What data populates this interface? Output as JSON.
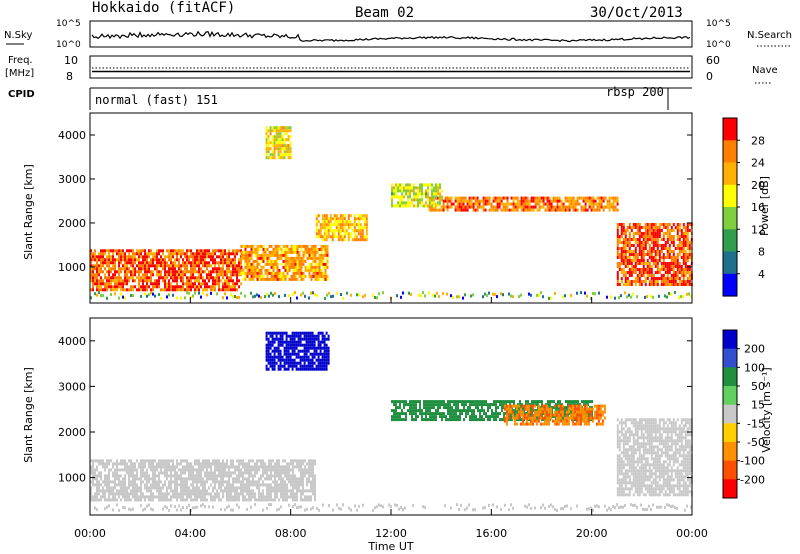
{
  "header": {
    "station": "Hokkaido (fitACF)",
    "beam": "Beam 02",
    "date": "30/Oct/2013"
  },
  "noise_panel": {
    "left_label": "N.Sky",
    "right_label": "N.Search",
    "left_ticks": [
      "10^5",
      "10^0"
    ],
    "right_ticks": [
      "10^5",
      "10^0"
    ]
  },
  "freq_panel": {
    "left_label_1": "Freq.",
    "left_label_2": "[MHz]",
    "left_ticks": [
      "10",
      "8"
    ],
    "right_label": "Nave",
    "right_ticks": [
      "60",
      "0"
    ]
  },
  "cpid_panel": {
    "label": "CPID",
    "program_1": "normal (fast) 151",
    "program_2": "rbsp 200"
  },
  "power_panel": {
    "ylabel": "Slant Range [km]",
    "yticks": [
      "4000",
      "3000",
      "2000",
      "1000"
    ],
    "colorbar_label": "Power [dB]",
    "colorbar_ticks": [
      "28",
      "24",
      "20",
      "16",
      "12",
      "8",
      "4"
    ],
    "colorbar_colors": [
      "#ff0000",
      "#ff7f00",
      "#ffb000",
      "#ffff00",
      "#7fcf3f",
      "#2f9f4f",
      "#1f6f8f",
      "#0000ff"
    ]
  },
  "velocity_panel": {
    "ylabel": "Slant Range [km]",
    "yticks": [
      "4000",
      "3000",
      "2000",
      "1000"
    ],
    "colorbar_label": "Velocity [m s⁻¹]",
    "colorbar_ticks": [
      "200",
      "100",
      "50",
      "15",
      "-15",
      "-50",
      "-100",
      "-200"
    ],
    "colorbar_colors": [
      "#0000cc",
      "#3050d0",
      "#208f40",
      "#60d060",
      "#c8c8c8",
      "#ffd000",
      "#ff9000",
      "#ff5000",
      "#ff0000"
    ]
  },
  "xaxis": {
    "label": "Time UT",
    "ticks": [
      "00:00",
      "04:00",
      "08:00",
      "12:00",
      "16:00",
      "20:00",
      "00:00"
    ]
  },
  "chart_data": {
    "type": "heatmap",
    "title": "Hokkaido (fitACF) Beam 02 30/Oct/2013",
    "xlabel": "Time UT",
    "ylabel": "Slant Range [km]",
    "xlim": [
      "00:00",
      "24:00"
    ],
    "ylim": [
      180,
      4500
    ],
    "power_range_db": [
      0,
      30
    ],
    "velocity_range_ms": [
      -200,
      200
    ],
    "power_echo_regions": [
      {
        "time_start": "00:00",
        "time_end": "06:00",
        "range_start_km": 500,
        "range_end_km": 1400,
        "power_db": 26
      },
      {
        "time_start": "06:00",
        "time_end": "09:30",
        "range_start_km": 700,
        "range_end_km": 1500,
        "power_db": 22
      },
      {
        "time_start": "09:00",
        "time_end": "11:00",
        "range_start_km": 1600,
        "range_end_km": 2200,
        "power_db": 20
      },
      {
        "time_start": "13:30",
        "time_end": "21:00",
        "range_start_km": 2300,
        "range_end_km": 2600,
        "power_db": 24
      },
      {
        "time_start": "12:00",
        "time_end": "14:00",
        "range_start_km": 2400,
        "range_end_km": 2900,
        "power_db": 16
      },
      {
        "time_start": "21:00",
        "time_end": "24:00",
        "range_start_km": 600,
        "range_end_km": 2000,
        "power_db": 26
      },
      {
        "time_start": "07:00",
        "time_end": "08:00",
        "range_start_km": 3500,
        "range_end_km": 4200,
        "power_db": 18
      }
    ],
    "velocity_echo_regions": [
      {
        "time_start": "00:00",
        "time_end": "09:00",
        "range_start_km": 500,
        "range_end_km": 1400,
        "velocity_ms": 0
      },
      {
        "time_start": "07:00",
        "time_end": "09:30",
        "range_start_km": 3400,
        "range_end_km": 4200,
        "velocity_ms": 200
      },
      {
        "time_start": "12:00",
        "time_end": "20:00",
        "range_start_km": 2300,
        "range_end_km": 2700,
        "velocity_ms": 60
      },
      {
        "time_start": "16:30",
        "time_end": "20:30",
        "range_start_km": 2200,
        "range_end_km": 2600,
        "velocity_ms": -70
      },
      {
        "time_start": "21:00",
        "time_end": "24:00",
        "range_start_km": 600,
        "range_end_km": 2300,
        "velocity_ms": 0
      }
    ]
  }
}
